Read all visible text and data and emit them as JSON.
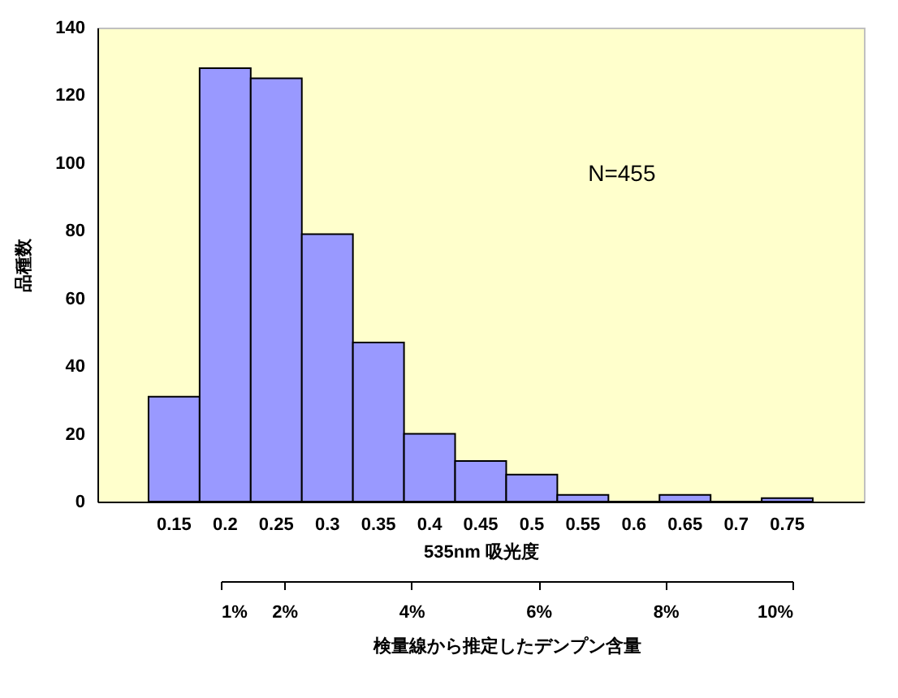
{
  "chart_data": {
    "type": "bar",
    "xlabel": "535nm 吸光度",
    "ylabel": "品種数",
    "x2label": "検量線から推定したデンプン含量",
    "categories": [
      "0.15",
      "0.2",
      "0.25",
      "0.3",
      "0.35",
      "0.4",
      "0.45",
      "0.5",
      "0.55",
      "0.6",
      "0.65",
      "0.7",
      "0.75"
    ],
    "values": [
      31,
      128,
      125,
      79,
      47,
      20,
      12,
      8,
      2,
      0,
      2,
      0,
      1
    ],
    "color": "#9999ff",
    "ylim": [
      0,
      140
    ],
    "yticks": [
      0,
      20,
      40,
      60,
      80,
      100,
      120,
      140
    ],
    "x2lim": [
      1,
      10
    ],
    "x2ticks": [
      {
        "value": 1,
        "label": "1%"
      },
      {
        "value": 2,
        "label": "2%"
      },
      {
        "value": 4,
        "label": "4%"
      },
      {
        "value": 6,
        "label": "6%"
      },
      {
        "value": 8,
        "label": "8%"
      },
      {
        "value": 10,
        "label": "10%"
      }
    ],
    "annotations": [
      "N=455"
    ],
    "grid": false
  }
}
